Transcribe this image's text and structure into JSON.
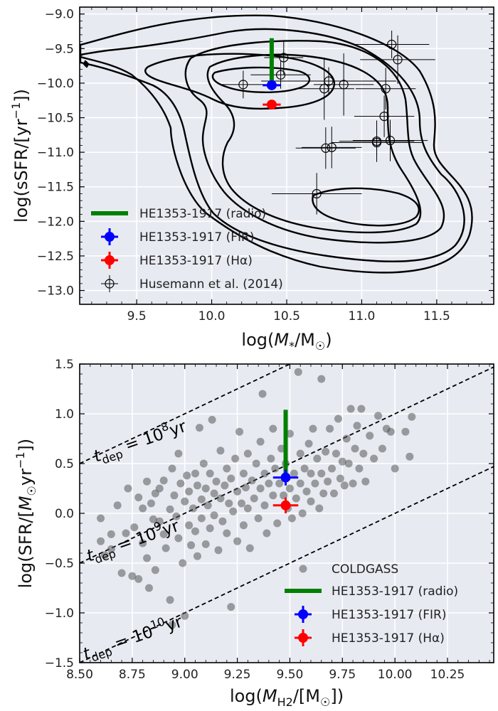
{
  "chart_data": [
    {
      "id": "top",
      "type": "scatter",
      "xlabel": "log(M*/M☉)",
      "ylabel": "log(sSFR/[yr⁻¹])",
      "xlim": [
        9.12,
        11.88
      ],
      "ylim": [
        -13.2,
        -8.9
      ],
      "xticks": [
        9.5,
        10.0,
        10.5,
        11.0,
        11.5
      ],
      "xtick_labels": [
        "9.5",
        "10.0",
        "10.5",
        "11.0",
        "11.5"
      ],
      "yticks": [
        -9.0,
        -9.5,
        -10.0,
        -10.5,
        -11.0,
        -11.5,
        -12.0,
        -12.5,
        -13.0
      ],
      "ytick_labels": [
        "−9.0",
        "−9.5",
        "−10.0",
        "−10.5",
        "−11.0",
        "−11.5",
        "−12.0",
        "−12.5",
        "−13.0"
      ],
      "grid": true,
      "radio": {
        "x": 10.4,
        "y1": -9.97,
        "y2": -9.35,
        "color": "#008000"
      },
      "fir": {
        "x": 10.4,
        "y": -10.03,
        "xerr": 0.06,
        "yerr": 0.06,
        "color": "#0000ff"
      },
      "halpha": {
        "x": 10.4,
        "y": -10.31,
        "xerr": 0.06,
        "yerr": 0.06,
        "color": "#ff0000"
      },
      "husemann": [
        {
          "x": 10.48,
          "y": -9.63,
          "xerr": 0.13,
          "yerr": 0.25
        },
        {
          "x": 10.46,
          "y": -9.88,
          "xerr": 0.2,
          "yerr": 0.2
        },
        {
          "x": 10.21,
          "y": -10.02,
          "xerr": 0.15,
          "yerr": 0.2
        },
        {
          "x": 10.75,
          "y": -10.08,
          "xerr": 0.2,
          "yerr": 0.45
        },
        {
          "x": 10.78,
          "y": -9.97,
          "xerr": 0.45,
          "yerr": 0.2
        },
        {
          "x": 10.88,
          "y": -10.02,
          "xerr": 0.2,
          "yerr": 0.45
        },
        {
          "x": 11.2,
          "y": -9.44,
          "xerr": 0.25,
          "yerr": 0.2
        },
        {
          "x": 11.24,
          "y": -9.66,
          "xerr": 0.25,
          "yerr": 0.35
        },
        {
          "x": 11.16,
          "y": -10.08,
          "xerr": 0.2,
          "yerr": 0.3
        },
        {
          "x": 11.15,
          "y": -10.48,
          "xerr": 0.2,
          "yerr": 0.3
        },
        {
          "x": 11.1,
          "y": -10.84,
          "xerr": 0.25,
          "yerr": 0.3
        },
        {
          "x": 11.19,
          "y": -10.83,
          "xerr": 0.25,
          "yerr": 0.3
        },
        {
          "x": 10.76,
          "y": -10.94,
          "xerr": 0.2,
          "yerr": 0.3
        },
        {
          "x": 10.8,
          "y": -10.93,
          "xerr": 0.2,
          "yerr": 0.3
        },
        {
          "x": 11.1,
          "y": -10.86,
          "xerr": 0.3,
          "yerr": 0.2
        },
        {
          "x": 10.7,
          "y": -11.6,
          "xerr": 0.3,
          "yerr": 0.3
        }
      ],
      "legend": {
        "position": "lower-left",
        "entries": [
          "HE1353-1917 (radio)",
          "HE1353-1917 (FIR)",
          "HE1353-1917 (Hα)",
          "Husemann et al. (2014)"
        ]
      }
    },
    {
      "id": "bottom",
      "type": "scatter",
      "xlabel": "log(MH2/[M☉])",
      "ylabel": "log(SFR/[M☉yr⁻¹])",
      "xlim": [
        8.5,
        10.47
      ],
      "ylim": [
        -1.5,
        1.5
      ],
      "xticks": [
        8.5,
        8.75,
        9.0,
        9.25,
        9.5,
        9.75,
        10.0,
        10.25
      ],
      "xtick_labels": [
        "8.50",
        "8.75",
        "9.00",
        "9.25",
        "9.50",
        "9.75",
        "10.00",
        "10.25"
      ],
      "yticks": [
        -1.5,
        -1.0,
        -0.5,
        0.0,
        0.5,
        1.0,
        1.5
      ],
      "ytick_labels": [
        "−1.5",
        "−1.0",
        "−0.5",
        "0.0",
        "0.5",
        "1.0",
        "1.5"
      ],
      "grid": true,
      "depletion_lines": [
        {
          "offset": -8,
          "label": "t_dep = 10^8 yr"
        },
        {
          "offset": -9,
          "label": "t_dep = 10^9 yr"
        },
        {
          "offset": -10,
          "label": "t_dep = 10^10 yr"
        }
      ],
      "tdep_label_parts": {
        "t": "t",
        "sub": "dep",
        "eq": " = 10",
        "exp8": "8",
        "exp9": "9",
        "exp10": "10",
        "yr": "yr"
      },
      "radio": {
        "x": 9.48,
        "y1": 0.36,
        "y2": 1.04,
        "color": "#008000"
      },
      "fir": {
        "x": 9.48,
        "y": 0.36,
        "xerr": 0.06,
        "yerr": 0.08,
        "color": "#0000ff"
      },
      "halpha": {
        "x": 9.48,
        "y": 0.08,
        "xerr": 0.06,
        "yerr": 0.08,
        "color": "#ff0000"
      },
      "coldgass": [
        [
          8.6,
          -0.05
        ],
        [
          8.6,
          -0.28
        ],
        [
          8.62,
          -0.42
        ],
        [
          8.65,
          -0.21
        ],
        [
          8.65,
          -0.36
        ],
        [
          8.68,
          0.08
        ],
        [
          8.7,
          -0.6
        ],
        [
          8.72,
          -0.2
        ],
        [
          8.73,
          0.25
        ],
        [
          8.75,
          -0.63
        ],
        [
          8.76,
          -0.14
        ],
        [
          8.78,
          0.16
        ],
        [
          8.78,
          -0.66
        ],
        [
          8.8,
          0.05
        ],
        [
          8.8,
          -0.3
        ],
        [
          8.82,
          0.32
        ],
        [
          8.82,
          -0.45
        ],
        [
          8.83,
          -0.75
        ],
        [
          8.84,
          0.1
        ],
        [
          8.85,
          -0.06
        ],
        [
          8.86,
          0.2
        ],
        [
          8.86,
          -0.57
        ],
        [
          8.88,
          0.25
        ],
        [
          8.88,
          -0.08
        ],
        [
          8.9,
          0.33
        ],
        [
          8.9,
          -0.21
        ],
        [
          8.91,
          -0.35
        ],
        [
          8.93,
          -0.87
        ],
        [
          8.93,
          0.04
        ],
        [
          8.94,
          0.45
        ],
        [
          8.94,
          -1.12
        ],
        [
          8.95,
          0.18
        ],
        [
          8.96,
          -0.03
        ],
        [
          8.97,
          0.6
        ],
        [
          8.97,
          -0.25
        ],
        [
          8.98,
          0.3
        ],
        [
          8.99,
          -0.5
        ],
        [
          9.0,
          0.12
        ],
        [
          9.0,
          -1.03
        ],
        [
          9.01,
          0.38
        ],
        [
          9.02,
          0.22
        ],
        [
          9.02,
          -0.12
        ],
        [
          9.03,
          -0.32
        ],
        [
          9.04,
          0.05
        ],
        [
          9.05,
          0.4
        ],
        [
          9.05,
          -0.18
        ],
        [
          9.06,
          0.28
        ],
        [
          9.06,
          -0.43
        ],
        [
          9.07,
          0.86
        ],
        [
          9.08,
          0.14
        ],
        [
          9.08,
          -0.05
        ],
        [
          9.09,
          0.5
        ],
        [
          9.1,
          0.25
        ],
        [
          9.1,
          -0.31
        ],
        [
          9.11,
          0.08
        ],
        [
          9.12,
          0.4
        ],
        [
          9.12,
          -0.15
        ],
        [
          9.13,
          0.94
        ],
        [
          9.14,
          0.2
        ],
        [
          9.14,
          -0.02
        ],
        [
          9.15,
          0.32
        ],
        [
          9.16,
          -0.37
        ],
        [
          9.17,
          0.15
        ],
        [
          9.17,
          0.63
        ],
        [
          9.18,
          -0.08
        ],
        [
          9.19,
          0.28
        ],
        [
          9.2,
          0.45
        ],
        [
          9.2,
          -0.2
        ],
        [
          9.21,
          0.1
        ],
        [
          9.22,
          -0.94
        ],
        [
          9.22,
          0.35
        ],
        [
          9.23,
          0.02
        ],
        [
          9.24,
          0.55
        ],
        [
          9.25,
          0.22
        ],
        [
          9.25,
          -0.28
        ],
        [
          9.26,
          0.82
        ],
        [
          9.27,
          0.1
        ],
        [
          9.28,
          0.4
        ],
        [
          9.28,
          -0.12
        ],
        [
          9.29,
          0.26
        ],
        [
          9.3,
          0.6
        ],
        [
          9.3,
          0.05
        ],
        [
          9.31,
          -0.35
        ],
        [
          9.32,
          0.33
        ],
        [
          9.33,
          0.15
        ],
        [
          9.34,
          0.5
        ],
        [
          9.35,
          -0.05
        ],
        [
          9.36,
          0.25
        ],
        [
          9.36,
          0.72
        ],
        [
          9.37,
          1.2
        ],
        [
          9.38,
          0.4
        ],
        [
          9.38,
          0.08
        ],
        [
          9.39,
          -0.2
        ],
        [
          9.4,
          0.3
        ],
        [
          9.41,
          0.55
        ],
        [
          9.42,
          0.18
        ],
        [
          9.42,
          0.85
        ],
        [
          9.43,
          0.45
        ],
        [
          9.44,
          -0.1
        ],
        [
          9.45,
          0.3
        ],
        [
          9.46,
          0.65
        ],
        [
          9.47,
          0.18
        ],
        [
          9.48,
          0.5
        ],
        [
          9.49,
          0.05
        ],
        [
          9.5,
          0.25
        ],
        [
          9.5,
          0.8
        ],
        [
          9.51,
          -0.05
        ],
        [
          9.52,
          0.4
        ],
        [
          9.53,
          0.15
        ],
        [
          9.54,
          1.42
        ],
        [
          9.55,
          0.6
        ],
        [
          9.55,
          0.3
        ],
        [
          9.56,
          0.0
        ],
        [
          9.57,
          0.45
        ],
        [
          9.58,
          0.22
        ],
        [
          9.59,
          0.7
        ],
        [
          9.6,
          0.4
        ],
        [
          9.6,
          0.12
        ],
        [
          9.61,
          0.85
        ],
        [
          9.62,
          0.3
        ],
        [
          9.63,
          0.55
        ],
        [
          9.64,
          0.05
        ],
        [
          9.65,
          0.4
        ],
        [
          9.65,
          1.35
        ],
        [
          9.66,
          0.2
        ],
        [
          9.67,
          0.62
        ],
        [
          9.68,
          0.32
        ],
        [
          9.69,
          0.85
        ],
        [
          9.7,
          0.45
        ],
        [
          9.71,
          0.2
        ],
        [
          9.72,
          0.6
        ],
        [
          9.73,
          0.95
        ],
        [
          9.74,
          0.35
        ],
        [
          9.75,
          0.52
        ],
        [
          9.76,
          0.28
        ],
        [
          9.77,
          0.75
        ],
        [
          9.78,
          0.5
        ],
        [
          9.79,
          1.05
        ],
        [
          9.8,
          0.3
        ],
        [
          9.81,
          0.65
        ],
        [
          9.82,
          0.88
        ],
        [
          9.83,
          0.45
        ],
        [
          9.84,
          1.05
        ],
        [
          9.85,
          0.6
        ],
        [
          9.86,
          0.32
        ],
        [
          9.88,
          0.78
        ],
        [
          9.9,
          0.55
        ],
        [
          9.92,
          0.98
        ],
        [
          9.94,
          0.65
        ],
        [
          9.96,
          0.85
        ],
        [
          9.98,
          0.82
        ],
        [
          10.0,
          0.45
        ],
        [
          10.05,
          0.82
        ],
        [
          10.07,
          0.57
        ],
        [
          10.08,
          0.97
        ]
      ],
      "legend": {
        "position": "lower-right",
        "entries": [
          "COLDGASS",
          "HE1353-1917 (radio)",
          "HE1353-1917 (FIR)",
          "HE1353-1917 (Hα)"
        ]
      }
    }
  ]
}
